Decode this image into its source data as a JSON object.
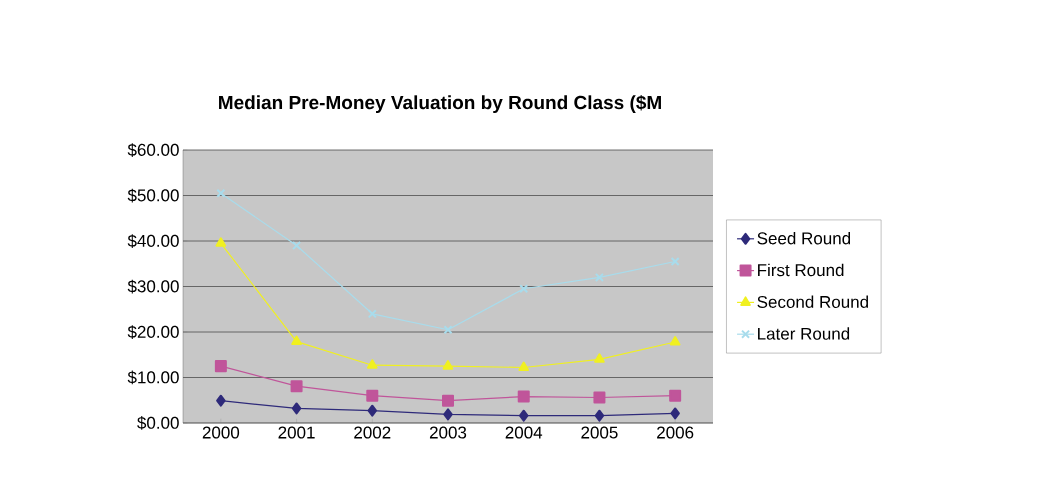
{
  "chart_data": {
    "type": "line",
    "title": "Median Pre-Money Valuation by Round Class ($M",
    "categories": [
      "2000",
      "2001",
      "2002",
      "2003",
      "2004",
      "2005",
      "2006"
    ],
    "series": [
      {
        "name": "Seed Round",
        "color": "#2e2a7a",
        "marker": "diamond",
        "values": [
          4.9,
          3.2,
          2.7,
          1.9,
          1.6,
          1.6,
          2.1
        ]
      },
      {
        "name": "First Round",
        "color": "#c0559a",
        "marker": "square",
        "values": [
          12.5,
          8.1,
          6.0,
          4.9,
          5.8,
          5.6,
          6.0
        ]
      },
      {
        "name": "Second Round",
        "color": "#f0f020",
        "marker": "triangle",
        "values": [
          39.5,
          17.9,
          12.7,
          12.5,
          12.2,
          14.0,
          17.8
        ]
      },
      {
        "name": "Later Round",
        "color": "#a8dcec",
        "marker": "cross",
        "values": [
          50.5,
          39.0,
          24.0,
          20.5,
          29.5,
          32.0,
          35.5
        ]
      }
    ],
    "ylim": [
      0,
      60
    ],
    "yticks": [
      {
        "value": 0,
        "label": "$0.00"
      },
      {
        "value": 10,
        "label": "$10.00"
      },
      {
        "value": 20,
        "label": "$20.00"
      },
      {
        "value": 30,
        "label": "$30.00"
      },
      {
        "value": 40,
        "label": "$40.00"
      },
      {
        "value": 50,
        "label": "$50.00"
      },
      {
        "value": 60,
        "label": "$60.00"
      }
    ],
    "grid": "y",
    "legend": "right"
  }
}
